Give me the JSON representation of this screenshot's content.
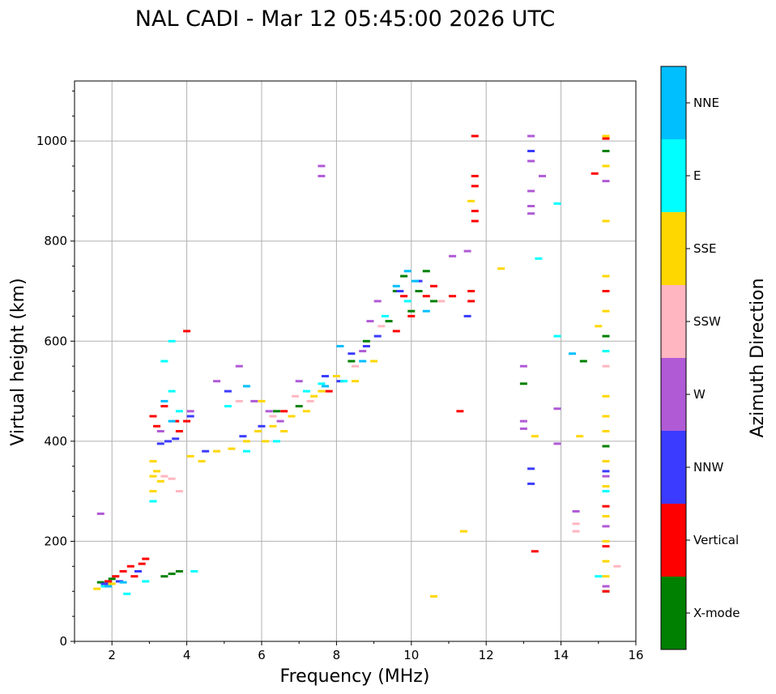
{
  "chart_data": {
    "type": "scatter",
    "title": "NAL CADI - Mar 12 05:45:00 2026 UTC",
    "xlabel": "Frequency (MHz)",
    "ylabel": "Virtual height (km)",
    "xlim": [
      1,
      16
    ],
    "ylim": [
      0,
      1120
    ],
    "xticks": [
      "2",
      "4",
      "6",
      "8",
      "10",
      "12",
      "14",
      "16"
    ],
    "yticks": [
      "0",
      "200",
      "400",
      "600",
      "800",
      "1000"
    ],
    "grid": true,
    "colorbar": {
      "label": "Azimuth Direction",
      "categories": [
        "X-mode",
        "Vertical",
        "NNW",
        "W",
        "SSW",
        "SSE",
        "E",
        "NNE"
      ],
      "colors": [
        "#008000",
        "#ff0000",
        "#3b3bff",
        "#b05ad6",
        "#ffb6c1",
        "#ffd700",
        "#00ffff",
        "#00bfff"
      ]
    },
    "series": [
      {
        "name": "X-mode",
        "points": [
          [
            1.7,
            118
          ],
          [
            2.0,
            125
          ],
          [
            3.4,
            130
          ],
          [
            3.6,
            135
          ],
          [
            3.8,
            140
          ],
          [
            6.4,
            460
          ],
          [
            7.0,
            470
          ],
          [
            8.4,
            560
          ],
          [
            8.8,
            600
          ],
          [
            9.4,
            640
          ],
          [
            9.6,
            700
          ],
          [
            9.8,
            730
          ],
          [
            10.0,
            660
          ],
          [
            10.2,
            700
          ],
          [
            10.4,
            740
          ],
          [
            10.6,
            680
          ],
          [
            13.0,
            515
          ],
          [
            14.6,
            560
          ],
          [
            15.2,
            100
          ],
          [
            15.2,
            390
          ],
          [
            15.2,
            610
          ],
          [
            15.2,
            980
          ]
        ]
      },
      {
        "name": "Vertical",
        "points": [
          [
            1.9,
            120
          ],
          [
            2.1,
            130
          ],
          [
            2.3,
            140
          ],
          [
            2.5,
            150
          ],
          [
            2.6,
            130
          ],
          [
            2.8,
            155
          ],
          [
            2.9,
            165
          ],
          [
            3.1,
            450
          ],
          [
            3.2,
            430
          ],
          [
            3.4,
            470
          ],
          [
            3.7,
            440
          ],
          [
            3.8,
            420
          ],
          [
            4.0,
            440
          ],
          [
            4.0,
            620
          ],
          [
            6.6,
            460
          ],
          [
            7.8,
            500
          ],
          [
            9.6,
            620
          ],
          [
            9.8,
            690
          ],
          [
            10.0,
            650
          ],
          [
            10.4,
            690
          ],
          [
            10.6,
            710
          ],
          [
            11.1,
            690
          ],
          [
            11.3,
            460
          ],
          [
            11.6,
            700
          ],
          [
            11.6,
            680
          ],
          [
            11.7,
            1010
          ],
          [
            11.7,
            930
          ],
          [
            11.7,
            910
          ],
          [
            11.7,
            860
          ],
          [
            11.7,
            840
          ],
          [
            13.3,
            180
          ],
          [
            14.9,
            935
          ],
          [
            15.2,
            100
          ],
          [
            15.2,
            190
          ],
          [
            15.2,
            270
          ],
          [
            15.2,
            700
          ],
          [
            15.2,
            1005
          ]
        ]
      },
      {
        "name": "NNW",
        "points": [
          [
            1.8,
            115
          ],
          [
            2.2,
            120
          ],
          [
            2.7,
            140
          ],
          [
            3.3,
            395
          ],
          [
            3.5,
            400
          ],
          [
            3.7,
            405
          ],
          [
            4.1,
            450
          ],
          [
            4.5,
            380
          ],
          [
            5.1,
            500
          ],
          [
            5.5,
            410
          ],
          [
            6.0,
            430
          ],
          [
            7.7,
            530
          ],
          [
            8.1,
            520
          ],
          [
            8.4,
            575
          ],
          [
            8.8,
            590
          ],
          [
            9.1,
            610
          ],
          [
            9.7,
            700
          ],
          [
            10.2,
            720
          ],
          [
            11.5,
            650
          ],
          [
            13.2,
            315
          ],
          [
            13.2,
            345
          ],
          [
            13.2,
            980
          ],
          [
            15.2,
            340
          ]
        ]
      },
      {
        "name": "W",
        "points": [
          [
            1.7,
            255
          ],
          [
            3.3,
            420
          ],
          [
            4.1,
            460
          ],
          [
            4.8,
            520
          ],
          [
            5.4,
            550
          ],
          [
            5.8,
            480
          ],
          [
            6.2,
            460
          ],
          [
            6.5,
            440
          ],
          [
            7.0,
            520
          ],
          [
            7.6,
            950
          ],
          [
            7.6,
            930
          ],
          [
            8.7,
            580
          ],
          [
            8.9,
            640
          ],
          [
            9.1,
            680
          ],
          [
            11.1,
            770
          ],
          [
            11.5,
            780
          ],
          [
            13.0,
            550
          ],
          [
            13.0,
            440
          ],
          [
            13.0,
            425
          ],
          [
            13.2,
            1010
          ],
          [
            13.2,
            960
          ],
          [
            13.2,
            900
          ],
          [
            13.2,
            870
          ],
          [
            13.2,
            855
          ],
          [
            13.5,
            930
          ],
          [
            13.9,
            465
          ],
          [
            13.9,
            395
          ],
          [
            14.4,
            260
          ],
          [
            15.2,
            110
          ],
          [
            15.2,
            230
          ],
          [
            15.2,
            330
          ],
          [
            15.2,
            920
          ]
        ]
      },
      {
        "name": "SSW",
        "points": [
          [
            3.4,
            330
          ],
          [
            3.6,
            325
          ],
          [
            3.8,
            300
          ],
          [
            5.4,
            480
          ],
          [
            6.3,
            450
          ],
          [
            6.9,
            490
          ],
          [
            7.3,
            480
          ],
          [
            8.5,
            550
          ],
          [
            9.2,
            630
          ],
          [
            10.8,
            680
          ],
          [
            14.4,
            220
          ],
          [
            14.4,
            235
          ],
          [
            15.2,
            550
          ],
          [
            15.5,
            150
          ]
        ]
      },
      {
        "name": "SSE",
        "points": [
          [
            1.6,
            105
          ],
          [
            2.0,
            115
          ],
          [
            3.1,
            300
          ],
          [
            3.1,
            330
          ],
          [
            3.1,
            360
          ],
          [
            3.2,
            340
          ],
          [
            3.3,
            320
          ],
          [
            4.1,
            370
          ],
          [
            4.4,
            360
          ],
          [
            4.8,
            380
          ],
          [
            5.2,
            385
          ],
          [
            5.6,
            400
          ],
          [
            5.9,
            420
          ],
          [
            6.0,
            480
          ],
          [
            6.1,
            400
          ],
          [
            6.3,
            430
          ],
          [
            6.6,
            420
          ],
          [
            6.8,
            450
          ],
          [
            7.2,
            460
          ],
          [
            7.4,
            490
          ],
          [
            7.6,
            500
          ],
          [
            8.0,
            530
          ],
          [
            8.5,
            520
          ],
          [
            9.0,
            560
          ],
          [
            10.6,
            90
          ],
          [
            11.4,
            220
          ],
          [
            11.6,
            880
          ],
          [
            12.4,
            745
          ],
          [
            13.3,
            410
          ],
          [
            14.5,
            410
          ],
          [
            15.0,
            630
          ],
          [
            15.2,
            130
          ],
          [
            15.2,
            160
          ],
          [
            15.2,
            200
          ],
          [
            15.2,
            250
          ],
          [
            15.2,
            310
          ],
          [
            15.2,
            360
          ],
          [
            15.2,
            420
          ],
          [
            15.2,
            450
          ],
          [
            15.2,
            490
          ],
          [
            15.2,
            580
          ],
          [
            15.2,
            660
          ],
          [
            15.2,
            730
          ],
          [
            15.2,
            840
          ],
          [
            15.2,
            950
          ],
          [
            15.2,
            1010
          ]
        ]
      },
      {
        "name": "E",
        "points": [
          [
            1.8,
            110
          ],
          [
            2.4,
            95
          ],
          [
            2.9,
            120
          ],
          [
            3.1,
            280
          ],
          [
            3.4,
            560
          ],
          [
            3.6,
            500
          ],
          [
            3.6,
            600
          ],
          [
            3.8,
            460
          ],
          [
            4.2,
            140
          ],
          [
            5.1,
            470
          ],
          [
            5.6,
            380
          ],
          [
            6.4,
            400
          ],
          [
            7.2,
            500
          ],
          [
            7.6,
            515
          ],
          [
            8.2,
            520
          ],
          [
            9.3,
            650
          ],
          [
            9.9,
            680
          ],
          [
            13.4,
            765
          ],
          [
            13.9,
            610
          ],
          [
            13.9,
            875
          ],
          [
            15.0,
            130
          ],
          [
            15.2,
            580
          ],
          [
            15.2,
            300
          ]
        ]
      },
      {
        "name": "NNE",
        "points": [
          [
            1.9,
            110
          ],
          [
            2.3,
            118
          ],
          [
            3.4,
            480
          ],
          [
            3.6,
            440
          ],
          [
            5.6,
            510
          ],
          [
            7.7,
            510
          ],
          [
            8.1,
            590
          ],
          [
            8.7,
            560
          ],
          [
            9.6,
            710
          ],
          [
            9.9,
            740
          ],
          [
            10.1,
            720
          ],
          [
            10.4,
            660
          ],
          [
            14.3,
            575
          ]
        ]
      }
    ]
  }
}
